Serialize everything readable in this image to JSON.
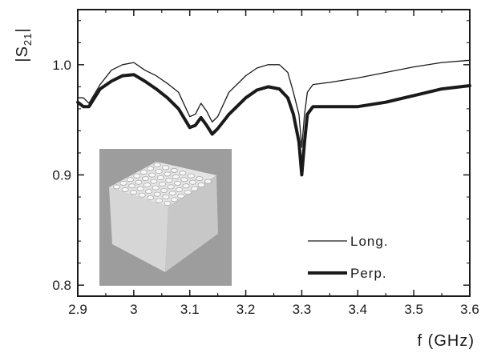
{
  "chart_data": {
    "type": "line",
    "title": "",
    "xlabel": "f (GHz)",
    "ylabel": "|S21|",
    "ylabel_main": "|S",
    "ylabel_sub": "21",
    "ylabel_end": "|",
    "xlim": [
      2.9,
      3.6
    ],
    "ylim": [
      0.79,
      1.05
    ],
    "xticks": [
      2.9,
      3.0,
      3.1,
      3.2,
      3.3,
      3.4,
      3.5,
      3.6
    ],
    "xtick_labels": [
      "2.9",
      "3",
      "3.1",
      "3.2",
      "3.3",
      "3.4",
      "3.5",
      "3.6"
    ],
    "yticks": [
      0.8,
      0.9,
      1.0
    ],
    "ytick_labels": [
      "0.8",
      "0.9",
      "1.0"
    ],
    "grid": false,
    "legend_position": "bottom-right",
    "series": [
      {
        "name": "Long.",
        "color": "#1a1a1a",
        "x": [
          2.9,
          2.91,
          2.92,
          2.94,
          2.96,
          2.98,
          3.0,
          3.02,
          3.04,
          3.06,
          3.08,
          3.1,
          3.11,
          3.12,
          3.13,
          3.14,
          3.15,
          3.17,
          3.2,
          3.22,
          3.24,
          3.26,
          3.275,
          3.285,
          3.295,
          3.3,
          3.305,
          3.31,
          3.32,
          3.35,
          3.4,
          3.45,
          3.5,
          3.55,
          3.6
        ],
        "y": [
          0.97,
          0.97,
          0.965,
          0.982,
          0.995,
          1.0,
          1.002,
          0.995,
          0.99,
          0.983,
          0.975,
          0.953,
          0.955,
          0.965,
          0.958,
          0.948,
          0.953,
          0.975,
          0.99,
          0.997,
          1.0,
          1.0,
          0.993,
          0.975,
          0.955,
          0.925,
          0.955,
          0.975,
          0.982,
          0.984,
          0.988,
          0.993,
          0.998,
          1.002,
          1.004
        ]
      },
      {
        "name": "Perp.",
        "color": "#1a1a1a",
        "x": [
          2.9,
          2.91,
          2.92,
          2.94,
          2.96,
          2.98,
          3.0,
          3.02,
          3.04,
          3.06,
          3.08,
          3.1,
          3.11,
          3.12,
          3.13,
          3.14,
          3.15,
          3.17,
          3.2,
          3.22,
          3.24,
          3.26,
          3.275,
          3.285,
          3.295,
          3.3,
          3.305,
          3.31,
          3.32,
          3.35,
          3.4,
          3.45,
          3.5,
          3.55,
          3.6
        ],
        "y": [
          0.966,
          0.962,
          0.962,
          0.978,
          0.985,
          0.99,
          0.991,
          0.985,
          0.978,
          0.97,
          0.96,
          0.943,
          0.945,
          0.952,
          0.945,
          0.937,
          0.942,
          0.955,
          0.97,
          0.977,
          0.98,
          0.978,
          0.97,
          0.955,
          0.93,
          0.9,
          0.93,
          0.955,
          0.962,
          0.962,
          0.962,
          0.966,
          0.972,
          0.978,
          0.981
        ]
      }
    ]
  },
  "inset_photo": {
    "subject": "sample-block-photo",
    "bg_color": "#9d9d9d",
    "block_color": "#e6e6e6"
  }
}
